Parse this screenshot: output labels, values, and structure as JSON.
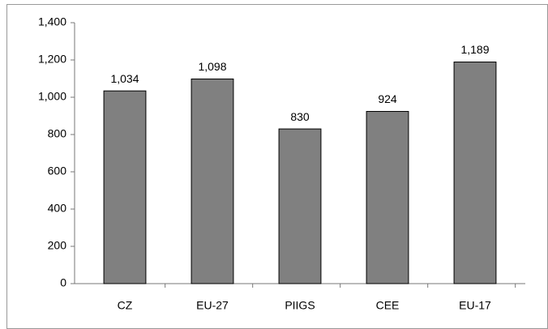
{
  "chart_data": {
    "type": "bar",
    "categories": [
      "CZ",
      "EU-27",
      "PIIGS",
      "CEE",
      "EU-17"
    ],
    "values": [
      1034,
      1098,
      830,
      924,
      1189
    ],
    "value_labels": [
      "1,034",
      "1,098",
      "830",
      "924",
      "1,189"
    ],
    "color": "#808080",
    "ylim": [
      0,
      1400
    ],
    "yticks": [
      0,
      200,
      400,
      600,
      800,
      {
        "value": 1000,
        "label": "1,000"
      },
      {
        "value": 1200,
        "label": "1,200"
      },
      {
        "value": 1400,
        "label": "1,400"
      }
    ],
    "grid": false
  }
}
